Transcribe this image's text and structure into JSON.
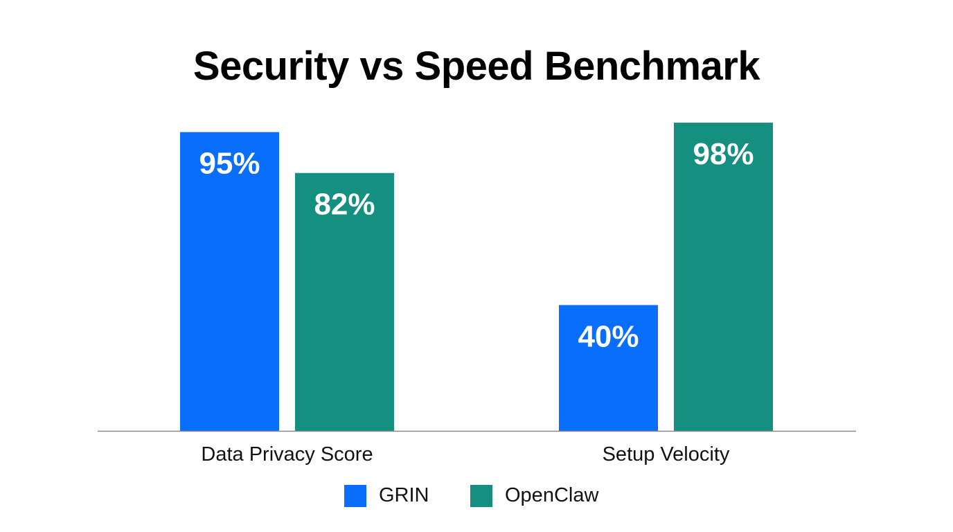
{
  "chart_data": {
    "type": "bar",
    "title": "Security vs Speed Benchmark",
    "categories": [
      "Data Privacy Score",
      "Setup Velocity"
    ],
    "series": [
      {
        "name": "GRIN",
        "values": [
          95,
          40
        ],
        "labels": [
          "95%",
          "40%"
        ],
        "color": "#0A6EFD"
      },
      {
        "name": "OpenClaw",
        "values": [
          82,
          98
        ],
        "labels": [
          "82%",
          "98%"
        ],
        "color": "#148F80"
      }
    ],
    "ylim": [
      0,
      100
    ],
    "unit": "%",
    "grid": false,
    "legend": "bottom"
  }
}
